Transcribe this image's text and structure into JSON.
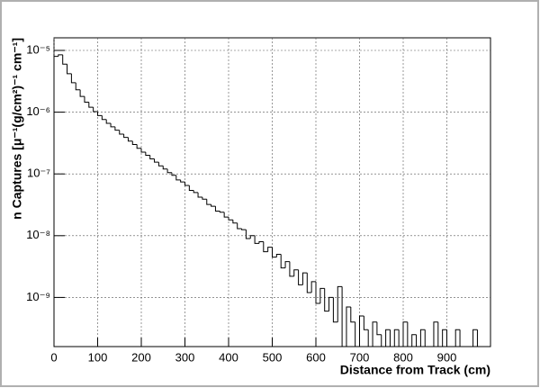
{
  "chart_data": {
    "type": "histogram",
    "x_label": "Distance from Track (cm)",
    "y_label": "n Captures [μ⁻¹(g/cm²)⁻¹ cm⁻¹]",
    "bins": [
      0,
      10,
      20,
      30,
      40,
      50,
      60,
      70,
      80,
      90,
      100,
      110,
      120,
      130,
      140,
      150,
      160,
      170,
      180,
      190,
      200,
      210,
      220,
      230,
      240,
      250,
      260,
      270,
      280,
      290,
      300,
      310,
      320,
      330,
      340,
      350,
      360,
      370,
      380,
      390,
      400,
      410,
      420,
      430,
      440,
      450,
      460,
      470,
      480,
      490,
      500,
      510,
      520,
      530,
      540,
      550,
      560,
      570,
      580,
      590,
      600,
      610,
      620,
      630,
      640,
      650,
      660,
      670,
      680,
      690,
      700,
      710,
      720,
      730,
      740,
      750,
      760,
      770,
      780,
      790,
      800,
      810,
      820,
      830,
      840,
      850,
      860,
      870,
      880,
      890,
      900,
      910,
      920,
      930,
      940,
      950,
      960,
      970,
      980
    ],
    "values": [
      8e-06,
      8.5e-06,
      6e-06,
      4.2e-06,
      3e-06,
      2.3e-06,
      1.8e-06,
      1.45e-06,
      1.2e-06,
      1.02e-06,
      8.8e-07,
      7.6e-07,
      6.6e-07,
      5.8e-07,
      5.1e-07,
      4.4e-07,
      3.9e-07,
      3.4e-07,
      3e-07,
      2.6e-07,
      2.25e-07,
      2e-07,
      1.75e-07,
      1.55e-07,
      1.35e-07,
      1.2e-07,
      1.05e-07,
      9.5e-08,
      8e-08,
      7.4e-08,
      6.5e-08,
      5.4e-08,
      5e-08,
      4.2e-08,
      3.9e-08,
      3.2e-08,
      3e-08,
      2.5e-08,
      2.4e-08,
      2e-08,
      1.8e-08,
      1.6e-08,
      1.3e-08,
      1.25e-08,
      9e-09,
      1e-08,
      7.5e-09,
      8e-09,
      5.5e-09,
      6.5e-09,
      4.5e-09,
      5e-09,
      3e-09,
      3.8e-09,
      2.2e-09,
      2.8e-09,
      1.6e-09,
      2.5e-09,
      1.2e-09,
      1.8e-09,
      8e-10,
      1.4e-09,
      6e-10,
      1e-09,
      4e-10,
      1.5e-09,
      null,
      7e-10,
      4e-10,
      null,
      5e-10,
      3e-10,
      null,
      4e-10,
      2.5e-10,
      null,
      3e-10,
      null,
      3e-10,
      null,
      4e-10,
      null,
      2.5e-10,
      null,
      3e-10,
      null,
      null,
      4e-10,
      null,
      3e-10,
      null,
      null,
      3e-10,
      null,
      null,
      null,
      3e-10,
      null
    ],
    "color": "#000000",
    "xlim": [
      0,
      1000
    ],
    "xticks": [
      0,
      100,
      200,
      300,
      400,
      500,
      600,
      700,
      800,
      900
    ],
    "ylim": [
      1.6e-10,
      1.6e-05
    ],
    "log_y": true,
    "yticks": [
      {
        "value": 1e-09,
        "label": "10⁻⁹"
      },
      {
        "value": 1e-08,
        "label": "10⁻⁸"
      },
      {
        "value": 1e-07,
        "label": "10⁻⁷"
      },
      {
        "value": 1e-06,
        "label": "10⁻⁶"
      },
      {
        "value": 1e-05,
        "label": "10⁻⁵"
      }
    ],
    "grid": true
  }
}
